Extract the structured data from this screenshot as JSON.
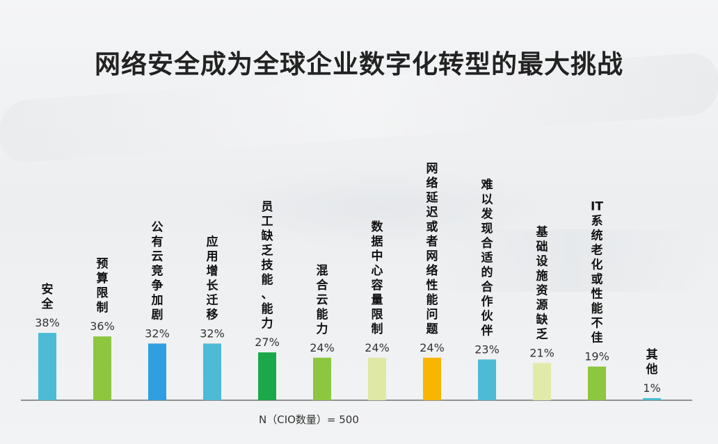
{
  "chart_data": {
    "type": "bar",
    "title": "网络安全成为全球企业数字化转型的最大挑战",
    "categories": [
      "安全",
      "预算限制",
      "公有云竞争加剧",
      "应用增长迁移",
      "员工缺乏技能、能力",
      "混合云能力",
      "数据中心容量限制",
      "网络延迟或者网络性能问题",
      "难以发现合适的合作伙伴",
      "基础设施资源缺乏",
      "IT系统老化或性能不佳",
      "其他"
    ],
    "values": [
      38,
      36,
      32,
      32,
      27,
      24,
      24,
      24,
      23,
      21,
      19,
      1
    ],
    "value_labels": [
      "38%",
      "36%",
      "32%",
      "32%",
      "27%",
      "24%",
      "24%",
      "24%",
      "23%",
      "21%",
      "19%",
      "1%"
    ],
    "colors": [
      "#4dbbd5",
      "#8dc63f",
      "#2e9fe0",
      "#4dbbd5",
      "#1aa84a",
      "#8dc63f",
      "#dfe8a4",
      "#f8b500",
      "#4dbbd5",
      "#e2eaa9",
      "#8dc63f",
      "#4dbbd5"
    ],
    "ylim": [
      0,
      40
    ],
    "grid": false,
    "legend": "none"
  },
  "footnote": "N（CIO数量）= 500"
}
